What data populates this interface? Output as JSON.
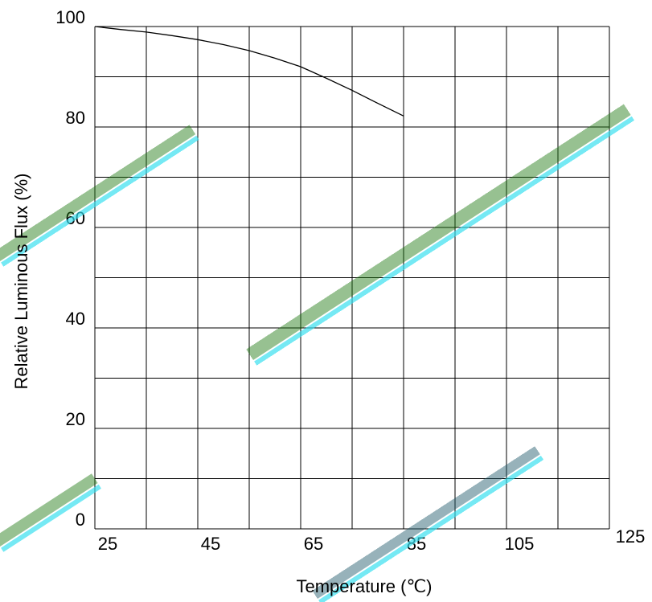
{
  "chart_data": {
    "type": "line",
    "title": "",
    "xlabel": "Temperature (℃)",
    "ylabel": "Relative Luminous Flux (%)",
    "xlim": [
      25,
      125
    ],
    "ylim": [
      0,
      100
    ],
    "x_ticks": [
      "25",
      "45",
      "65",
      "85",
      "105",
      "125"
    ],
    "y_ticks": [
      "0",
      "20",
      "40",
      "60",
      "80",
      "100"
    ],
    "grid": true,
    "series": [
      {
        "x": [
          25,
          30,
          35,
          40,
          45,
          50,
          55,
          60,
          65,
          70,
          75,
          80,
          85
        ],
        "y": [
          100,
          99.4,
          98.9,
          98.2,
          97.4,
          96.4,
          95.2,
          93.7,
          92.0,
          89.7,
          87.3,
          84.7,
          82.2
        ],
        "color": "#000000"
      }
    ]
  },
  "colors": {
    "line": "#000000",
    "grid": "#000000",
    "watermark_green": "#1f7a12",
    "watermark_cyan": "#33ddee"
  }
}
